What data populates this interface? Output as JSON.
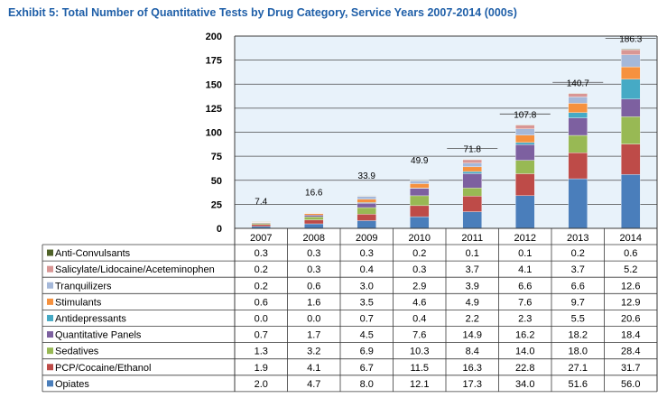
{
  "title": "Exhibit 5: Total Number of Quantitative Tests by Drug Category, Service Years 2007-2014 (000s)",
  "colors": {
    "title": "#1f5fa8",
    "plot_background": "#e8f2fa",
    "grid": "#4a4a4a",
    "border": "#3a3a3a"
  },
  "chart_data": {
    "type": "bar",
    "stacked": true,
    "title": "Exhibit 5: Total Number of Quantitative Tests by Drug Category, Service Years 2007-2014 (000s)",
    "xlabel": "",
    "ylabel": "",
    "ylim": [
      0,
      200
    ],
    "yticks": [
      "0",
      "25",
      "50",
      "75",
      "100",
      "125",
      "150",
      "175",
      "200"
    ],
    "grid": true,
    "legend": "data table rows below chart",
    "categories": [
      "2007",
      "2008",
      "2009",
      "2010",
      "2011",
      "2012",
      "2013",
      "2014"
    ],
    "totals": [
      7.4,
      16.6,
      33.9,
      49.9,
      71.8,
      107.8,
      140.7,
      186.3
    ],
    "total_labels": [
      "7.4",
      "16.6",
      "33.9",
      "49.9",
      "71.8",
      "107.8",
      "140.7",
      "186.3"
    ],
    "series": [
      {
        "name": "Opiates",
        "color": "#4a7ebb",
        "values": [
          2.0,
          4.7,
          8.0,
          12.1,
          17.3,
          34.0,
          51.6,
          56.0
        ],
        "labels": [
          "2.0",
          "4.7",
          "8.0",
          "12.1",
          "17.3",
          "34.0",
          "51.6",
          "56.0"
        ]
      },
      {
        "name": "PCP/Cocaine/Ethanol",
        "color": "#be4b48",
        "values": [
          1.9,
          4.1,
          6.7,
          11.5,
          16.3,
          22.8,
          27.1,
          31.7
        ],
        "labels": [
          "1.9",
          "4.1",
          "6.7",
          "11.5",
          "16.3",
          "22.8",
          "27.1",
          "31.7"
        ]
      },
      {
        "name": "Sedatives",
        "color": "#98b954",
        "values": [
          1.3,
          3.2,
          6.9,
          10.3,
          8.4,
          14.0,
          18.0,
          28.4
        ],
        "labels": [
          "1.3",
          "3.2",
          "6.9",
          "10.3",
          "8.4",
          "14.0",
          "18.0",
          "28.4"
        ]
      },
      {
        "name": "Quantitative Panels",
        "color": "#7d60a0",
        "values": [
          0.7,
          1.7,
          4.5,
          7.6,
          14.9,
          16.2,
          18.2,
          18.4
        ],
        "labels": [
          "0.7",
          "1.7",
          "4.5",
          "7.6",
          "14.9",
          "16.2",
          "18.2",
          "18.4"
        ]
      },
      {
        "name": "Antidepressants",
        "color": "#46aac5",
        "values": [
          0.0,
          0.0,
          0.7,
          0.4,
          2.2,
          2.3,
          5.5,
          20.6
        ],
        "labels": [
          "0.0",
          "0.0",
          "0.7",
          "0.4",
          "2.2",
          "2.3",
          "5.5",
          "20.6"
        ]
      },
      {
        "name": "Stimulants",
        "color": "#f6913e",
        "values": [
          0.6,
          1.6,
          3.5,
          4.6,
          4.9,
          7.6,
          9.7,
          12.9
        ],
        "labels": [
          "0.6",
          "1.6",
          "3.5",
          "4.6",
          "4.9",
          "7.6",
          "9.7",
          "12.9"
        ]
      },
      {
        "name": "Tranquilizers",
        "color": "#a5b8d9",
        "values": [
          0.2,
          0.6,
          3.0,
          2.9,
          3.9,
          6.6,
          6.6,
          12.6
        ],
        "labels": [
          "0.2",
          "0.6",
          "3.0",
          "2.9",
          "3.9",
          "6.6",
          "6.6",
          "12.6"
        ]
      },
      {
        "name": "Salicylate/Lidocaine/Aceteminophen",
        "color": "#d99694",
        "values": [
          0.2,
          0.3,
          0.4,
          0.3,
          3.7,
          4.1,
          3.7,
          5.2
        ],
        "labels": [
          "0.2",
          "0.3",
          "0.4",
          "0.3",
          "3.7",
          "4.1",
          "3.7",
          "5.2"
        ]
      },
      {
        "name": "Anti-Convulsants",
        "color": "#4f6228",
        "values": [
          0.3,
          0.3,
          0.3,
          0.2,
          0.1,
          0.1,
          0.2,
          0.6
        ],
        "labels": [
          "0.3",
          "0.3",
          "0.3",
          "0.2",
          "0.1",
          "0.1",
          "0.2",
          "0.6"
        ]
      }
    ]
  }
}
